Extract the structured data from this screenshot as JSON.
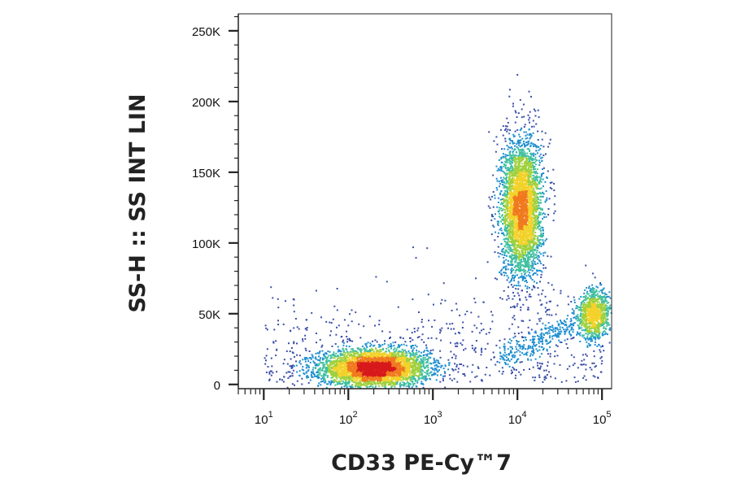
{
  "chart_data": {
    "type": "scatter",
    "plot_style": "flow cytometry density dot plot",
    "xlabel": "CD33 PE-Cy™7",
    "ylabel": "SS-H :: SS INT LIN",
    "x_scale": "log",
    "xlim": [
      5,
      130000
    ],
    "ylim": [
      -3000,
      262000
    ],
    "x_ticks": [
      {
        "value": 10,
        "base": "10",
        "exp": "1"
      },
      {
        "value": 100,
        "base": "10",
        "exp": "2"
      },
      {
        "value": 1000,
        "base": "10",
        "exp": "3"
      },
      {
        "value": 10000,
        "base": "10",
        "exp": "4"
      },
      {
        "value": 100000,
        "base": "10",
        "exp": "5"
      }
    ],
    "y_ticks": [
      {
        "value": 0,
        "label": "0"
      },
      {
        "value": 50000,
        "label": "50K"
      },
      {
        "value": 100000,
        "label": "100K"
      },
      {
        "value": 150000,
        "label": "150K"
      },
      {
        "value": 200000,
        "label": "200K"
      },
      {
        "value": 250000,
        "label": "250K"
      }
    ],
    "populations": [
      {
        "center_x": 200,
        "center_y": 12000,
        "spread_x_decades": 0.32,
        "spread_y": 6500,
        "relative_size": 0.42
      },
      {
        "center_x": 11000,
        "center_y": 125000,
        "spread_x_decades": 0.12,
        "spread_y": 25000,
        "relative_size": 0.4
      },
      {
        "center_x": 80000,
        "center_y": 50000,
        "spread_x_decades": 0.09,
        "spread_y": 9000,
        "relative_size": 0.1
      }
    ],
    "color_scale": [
      "#3b4fa8",
      "#1f8fd0",
      "#3fbfa0",
      "#9fd03c",
      "#f2d22a",
      "#f07a1e",
      "#d7191c"
    ],
    "grid": false,
    "legend": "none"
  }
}
